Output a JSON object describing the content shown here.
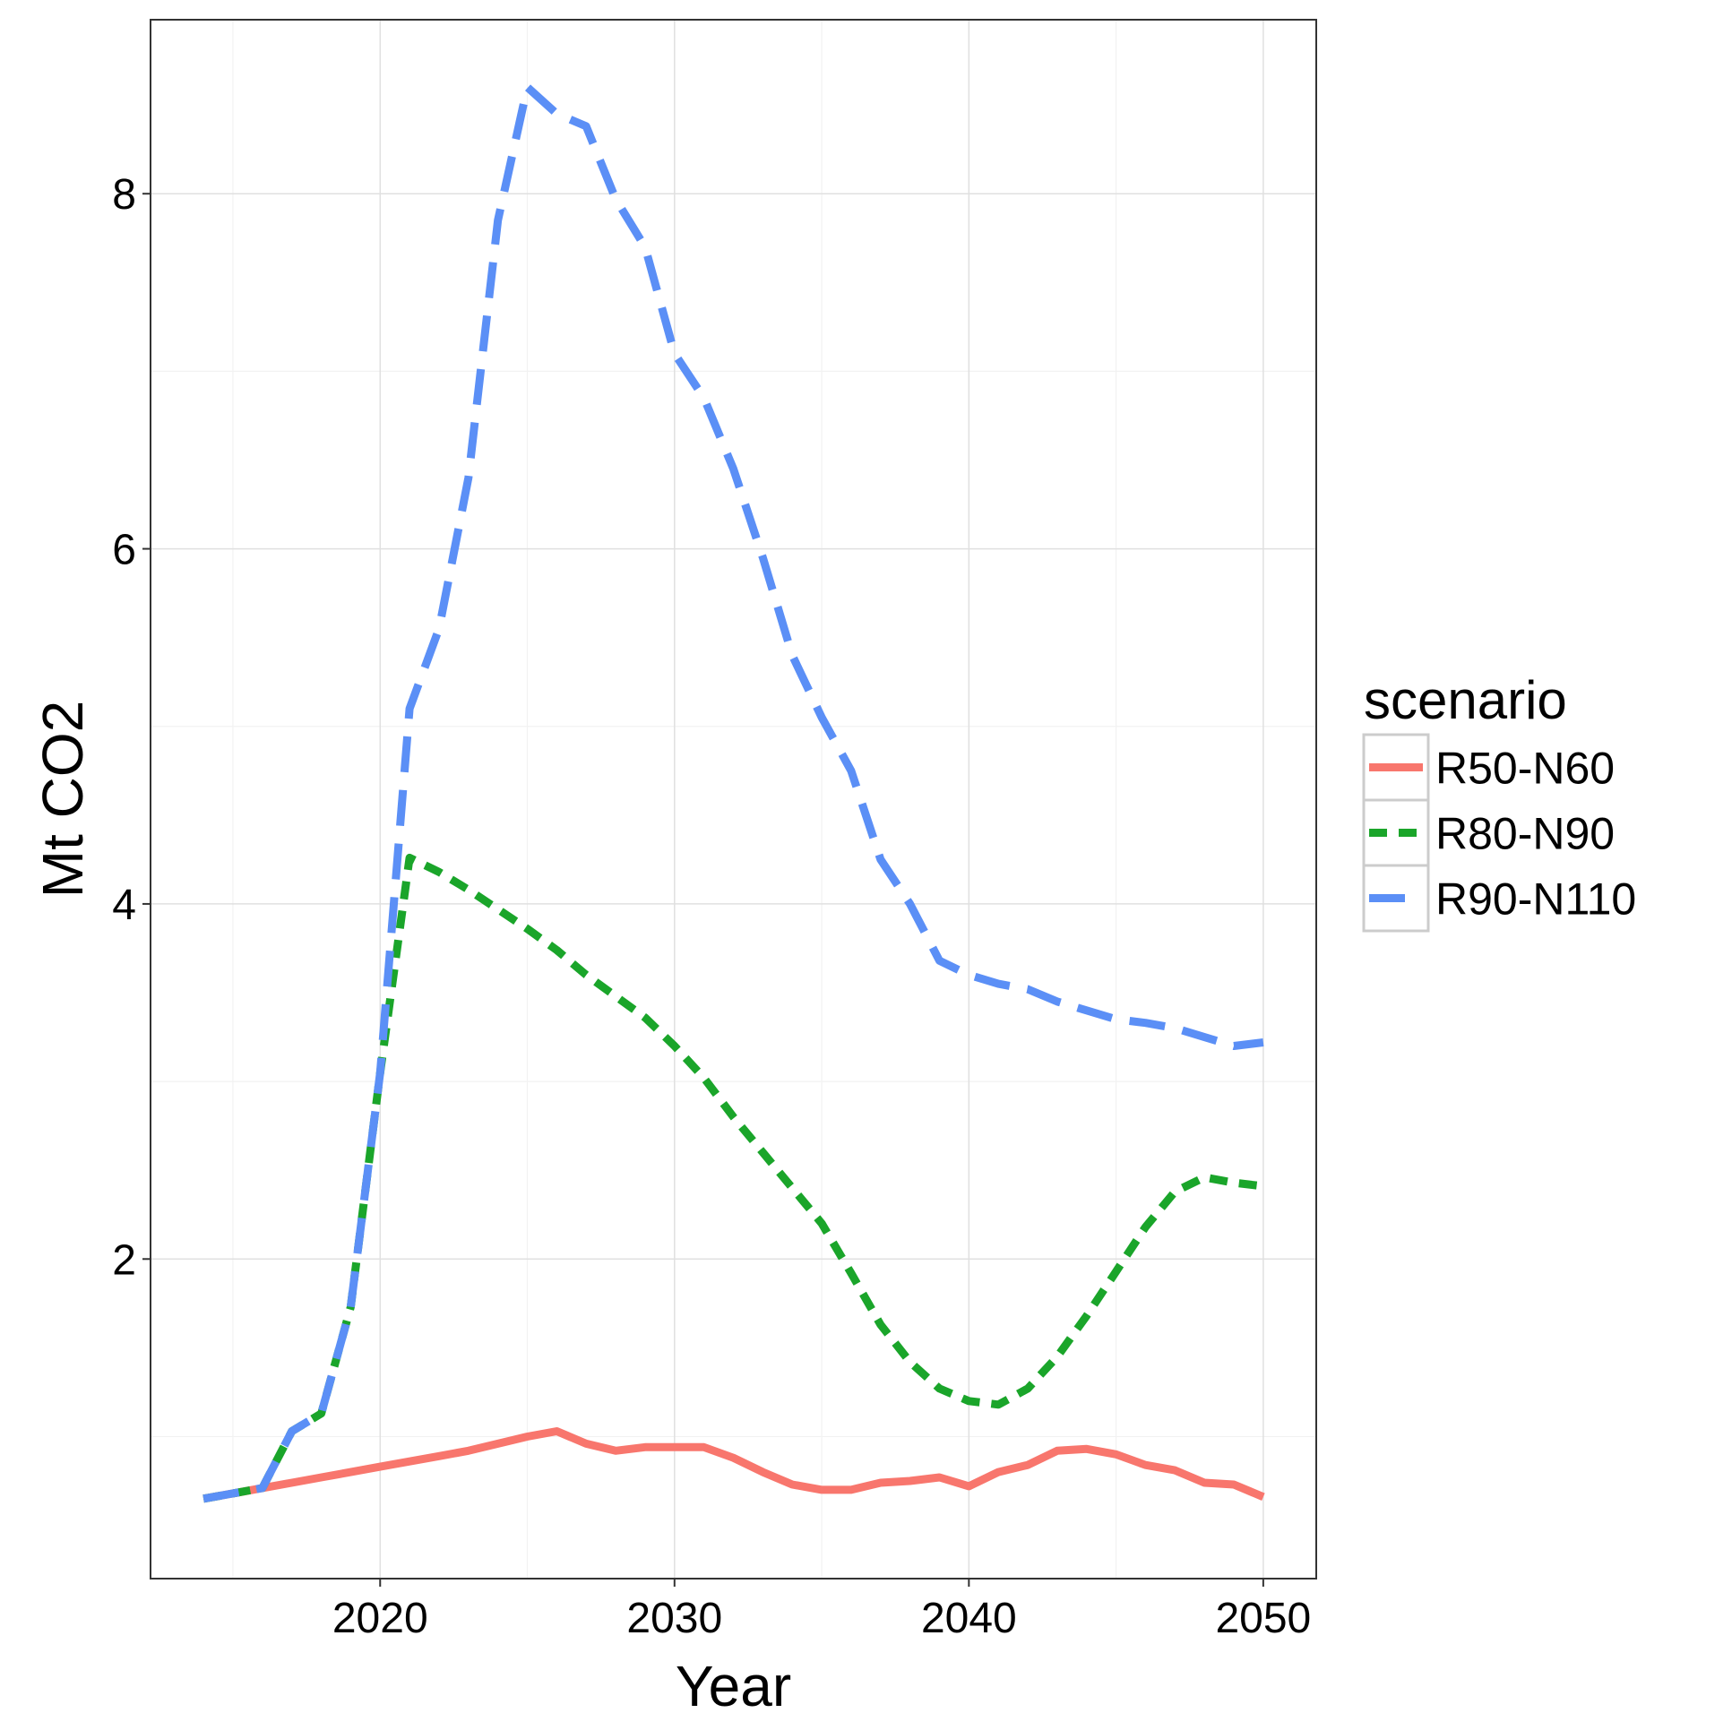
{
  "chart_data": {
    "type": "line",
    "xlabel": "Year",
    "ylabel": "Mt CO2",
    "xlim": [
      2012.2,
      2051.8
    ],
    "ylim": [
      0.2,
      8.98
    ],
    "x_ticks": [
      2020,
      2030,
      2040,
      2050
    ],
    "y_ticks": [
      2,
      4,
      6,
      8
    ],
    "x_minor": [
      2015,
      2025,
      2035,
      2045
    ],
    "y_minor": [
      1,
      3,
      5,
      7
    ],
    "grid": true,
    "legend": {
      "title": "scenario",
      "position": "right"
    },
    "x": [
      2014,
      2015,
      2016,
      2017,
      2018,
      2019,
      2020,
      2021,
      2022,
      2023,
      2024,
      2025,
      2026,
      2027,
      2028,
      2029,
      2030,
      2031,
      2032,
      2033,
      2034,
      2035,
      2036,
      2037,
      2038,
      2039,
      2040,
      2041,
      2042,
      2043,
      2044,
      2045,
      2046,
      2047,
      2048,
      2049,
      2050
    ],
    "series": [
      {
        "name": "R50-N60",
        "color": "#f8766d",
        "dash": "solid",
        "values": [
          0.65,
          0.68,
          0.71,
          0.74,
          0.77,
          0.8,
          0.83,
          0.86,
          0.89,
          0.92,
          0.96,
          1.0,
          1.03,
          0.96,
          0.92,
          0.94,
          0.94,
          0.94,
          0.88,
          0.8,
          0.73,
          0.7,
          0.7,
          0.74,
          0.75,
          0.77,
          0.72,
          0.8,
          0.84,
          0.92,
          0.93,
          0.9,
          0.84,
          0.81,
          0.74,
          0.73,
          0.66
        ]
      },
      {
        "name": "R80-N90",
        "color": "#1aa52a",
        "dash": "dashed-short",
        "values": [
          0.65,
          0.68,
          0.71,
          1.03,
          1.13,
          1.73,
          3.05,
          4.26,
          4.18,
          4.08,
          3.97,
          3.86,
          3.74,
          3.6,
          3.48,
          3.36,
          3.2,
          3.02,
          2.8,
          2.6,
          2.4,
          2.2,
          1.92,
          1.63,
          1.42,
          1.27,
          1.2,
          1.18,
          1.27,
          1.45,
          1.68,
          1.93,
          2.18,
          2.38,
          2.46,
          2.43,
          2.41
        ]
      },
      {
        "name": "R90-N110",
        "color": "#5b8ff6",
        "dash": "dashed-long",
        "values": [
          0.65,
          0.68,
          0.71,
          1.03,
          1.13,
          1.73,
          3.05,
          5.1,
          5.55,
          6.4,
          7.85,
          8.6,
          8.45,
          8.38,
          7.97,
          7.7,
          7.1,
          6.85,
          6.45,
          5.95,
          5.4,
          5.05,
          4.75,
          4.25,
          4.0,
          3.68,
          3.6,
          3.55,
          3.52,
          3.45,
          3.4,
          3.35,
          3.33,
          3.3,
          3.25,
          3.2,
          3.22
        ]
      }
    ]
  }
}
